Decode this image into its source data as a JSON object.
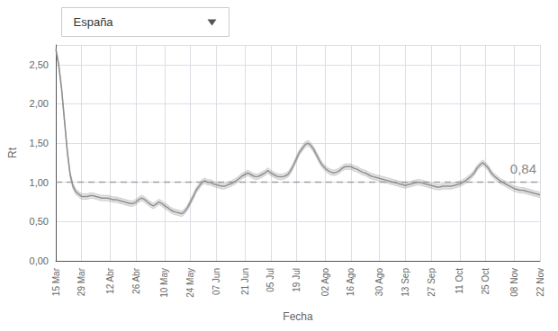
{
  "chart_data": {
    "type": "line",
    "xlabel": "Fecha",
    "ylabel": "Rt",
    "dropdown": "España",
    "annotation": {
      "text": "0,84",
      "y": 0.84
    },
    "reference_line": 1.0,
    "color": "#909090",
    "grid": true,
    "ylim": [
      0.0,
      2.75
    ],
    "yticks": [
      {
        "value": 0.0,
        "label": "0,00"
      },
      {
        "value": 0.5,
        "label": "0,50"
      },
      {
        "value": 1.0,
        "label": "1,00"
      },
      {
        "value": 1.5,
        "label": "1,50"
      },
      {
        "value": 2.0,
        "label": "2,00"
      },
      {
        "value": 2.5,
        "label": "2,50"
      }
    ],
    "categories": [
      "15 Mar",
      null,
      null,
      null,
      null,
      null,
      null,
      null,
      null,
      "29 Mar",
      null,
      null,
      null,
      null,
      null,
      null,
      null,
      null,
      null,
      "12 Abr",
      null,
      null,
      null,
      null,
      null,
      null,
      null,
      null,
      "26 Abr",
      null,
      null,
      null,
      null,
      null,
      null,
      null,
      null,
      null,
      "10 May",
      null,
      null,
      null,
      null,
      null,
      null,
      null,
      null,
      "24 May",
      null,
      null,
      null,
      null,
      null,
      null,
      null,
      null,
      "07 Jun",
      null,
      null,
      null,
      null,
      null,
      null,
      null,
      null,
      null,
      "21 Jun",
      null,
      null,
      null,
      null,
      null,
      null,
      null,
      null,
      "05 Jul",
      null,
      null,
      null,
      null,
      null,
      null,
      null,
      null,
      "19 Jul",
      null,
      null,
      null,
      null,
      null,
      null,
      null,
      null,
      null,
      "02 Ago",
      null,
      null,
      null,
      null,
      null,
      null,
      null,
      null,
      "16 Ago",
      null,
      null,
      null,
      null,
      null,
      null,
      null,
      null,
      null,
      "30 Ago",
      null,
      null,
      null,
      null,
      null,
      null,
      null,
      null,
      "13 Sep",
      null,
      null,
      null,
      null,
      null,
      null,
      null,
      null,
      "27 Sep",
      null,
      null,
      null,
      null,
      null,
      null,
      null,
      null,
      null,
      "11 Oct",
      null,
      null,
      null,
      null,
      null,
      null,
      null,
      null,
      "25 Oct",
      null,
      null,
      null,
      null,
      null,
      null,
      null,
      null,
      null,
      "08 Nov",
      null,
      null,
      null,
      null,
      null,
      null,
      null,
      null,
      "22 Nov"
    ],
    "values": [
      2.7,
      2.5,
      2.2,
      1.8,
      1.4,
      1.1,
      0.95,
      0.88,
      0.85,
      0.82,
      0.82,
      0.82,
      0.83,
      0.83,
      0.82,
      0.81,
      0.8,
      0.8,
      0.8,
      0.79,
      0.78,
      0.78,
      0.77,
      0.76,
      0.75,
      0.74,
      0.73,
      0.73,
      0.75,
      0.78,
      0.8,
      0.78,
      0.75,
      0.72,
      0.7,
      0.72,
      0.75,
      0.73,
      0.7,
      0.68,
      0.65,
      0.63,
      0.62,
      0.61,
      0.6,
      0.63,
      0.68,
      0.75,
      0.82,
      0.9,
      0.95,
      1.0,
      1.02,
      1.0,
      1.0,
      0.98,
      0.97,
      0.96,
      0.95,
      0.95,
      0.97,
      0.98,
      1.0,
      1.02,
      1.05,
      1.08,
      1.1,
      1.12,
      1.1,
      1.08,
      1.07,
      1.08,
      1.1,
      1.12,
      1.15,
      1.12,
      1.1,
      1.08,
      1.07,
      1.07,
      1.08,
      1.1,
      1.15,
      1.22,
      1.3,
      1.38,
      1.43,
      1.48,
      1.5,
      1.47,
      1.42,
      1.35,
      1.28,
      1.22,
      1.18,
      1.15,
      1.13,
      1.12,
      1.13,
      1.15,
      1.18,
      1.2,
      1.2,
      1.2,
      1.18,
      1.17,
      1.15,
      1.13,
      1.12,
      1.1,
      1.08,
      1.07,
      1.06,
      1.05,
      1.04,
      1.03,
      1.02,
      1.01,
      1.0,
      0.99,
      0.98,
      0.97,
      0.96,
      0.97,
      0.98,
      0.99,
      1.0,
      1.0,
      0.99,
      0.98,
      0.97,
      0.96,
      0.95,
      0.94,
      0.94,
      0.95,
      0.95,
      0.95,
      0.95,
      0.96,
      0.97,
      0.98,
      1.0,
      1.02,
      1.05,
      1.08,
      1.12,
      1.18,
      1.22,
      1.25,
      1.22,
      1.18,
      1.12,
      1.08,
      1.05,
      1.02,
      1.0,
      0.98,
      0.96,
      0.94,
      0.92,
      0.91,
      0.9,
      0.9,
      0.89,
      0.88,
      0.87,
      0.86,
      0.85,
      0.84
    ],
    "lower": [
      2.665,
      2.465,
      2.165,
      1.765,
      1.365,
      1.065,
      0.915,
      0.845,
      0.815,
      0.785,
      0.785,
      0.785,
      0.795,
      0.795,
      0.785,
      0.775,
      0.765,
      0.765,
      0.765,
      0.755,
      0.745,
      0.745,
      0.735,
      0.725,
      0.715,
      0.705,
      0.695,
      0.695,
      0.715,
      0.745,
      0.765,
      0.745,
      0.715,
      0.685,
      0.665,
      0.685,
      0.715,
      0.695,
      0.665,
      0.645,
      0.615,
      0.595,
      0.585,
      0.575,
      0.565,
      0.595,
      0.645,
      0.715,
      0.785,
      0.865,
      0.915,
      0.965,
      0.985,
      0.965,
      0.965,
      0.945,
      0.935,
      0.925,
      0.915,
      0.915,
      0.935,
      0.945,
      0.965,
      0.985,
      1.015,
      1.045,
      1.065,
      1.085,
      1.065,
      1.045,
      1.035,
      1.045,
      1.065,
      1.085,
      1.115,
      1.085,
      1.065,
      1.045,
      1.035,
      1.035,
      1.045,
      1.065,
      1.115,
      1.185,
      1.265,
      1.345,
      1.395,
      1.445,
      1.465,
      1.435,
      1.385,
      1.315,
      1.245,
      1.185,
      1.145,
      1.115,
      1.095,
      1.085,
      1.095,
      1.115,
      1.145,
      1.165,
      1.165,
      1.165,
      1.145,
      1.135,
      1.115,
      1.095,
      1.085,
      1.065,
      1.045,
      1.035,
      1.025,
      1.015,
      1.005,
      0.995,
      0.985,
      0.975,
      0.965,
      0.955,
      0.945,
      0.935,
      0.925,
      0.935,
      0.945,
      0.955,
      0.965,
      0.965,
      0.955,
      0.945,
      0.935,
      0.925,
      0.915,
      0.905,
      0.905,
      0.915,
      0.915,
      0.915,
      0.915,
      0.925,
      0.935,
      0.945,
      0.965,
      0.985,
      1.015,
      1.045,
      1.085,
      1.145,
      1.185,
      1.215,
      1.185,
      1.145,
      1.085,
      1.045,
      1.015,
      0.985,
      0.965,
      0.945,
      0.925,
      0.905,
      0.885,
      0.875,
      0.865,
      0.865,
      0.855,
      0.845,
      0.835,
      0.825,
      0.815,
      0.805
    ],
    "upper": [
      2.735,
      2.535,
      2.235,
      1.835,
      1.435,
      1.135,
      0.985,
      0.915,
      0.885,
      0.855,
      0.855,
      0.855,
      0.865,
      0.865,
      0.855,
      0.845,
      0.835,
      0.835,
      0.835,
      0.825,
      0.815,
      0.815,
      0.805,
      0.795,
      0.785,
      0.775,
      0.765,
      0.765,
      0.785,
      0.815,
      0.835,
      0.815,
      0.785,
      0.755,
      0.735,
      0.755,
      0.785,
      0.765,
      0.735,
      0.715,
      0.685,
      0.665,
      0.655,
      0.645,
      0.635,
      0.665,
      0.715,
      0.785,
      0.855,
      0.935,
      0.985,
      1.035,
      1.055,
      1.035,
      1.035,
      1.015,
      1.005,
      0.995,
      0.985,
      0.985,
      1.005,
      1.015,
      1.035,
      1.055,
      1.085,
      1.115,
      1.135,
      1.155,
      1.135,
      1.115,
      1.105,
      1.115,
      1.135,
      1.155,
      1.185,
      1.155,
      1.135,
      1.115,
      1.105,
      1.105,
      1.115,
      1.135,
      1.185,
      1.255,
      1.335,
      1.415,
      1.465,
      1.515,
      1.535,
      1.505,
      1.455,
      1.385,
      1.315,
      1.255,
      1.215,
      1.185,
      1.165,
      1.155,
      1.165,
      1.185,
      1.215,
      1.235,
      1.235,
      1.235,
      1.215,
      1.205,
      1.185,
      1.165,
      1.155,
      1.135,
      1.115,
      1.105,
      1.095,
      1.085,
      1.075,
      1.065,
      1.055,
      1.045,
      1.035,
      1.025,
      1.015,
      1.005,
      0.995,
      1.005,
      1.015,
      1.025,
      1.035,
      1.035,
      1.025,
      1.015,
      1.005,
      0.995,
      0.985,
      0.975,
      0.975,
      0.985,
      0.985,
      0.985,
      0.985,
      0.995,
      1.005,
      1.015,
      1.035,
      1.055,
      1.085,
      1.115,
      1.155,
      1.215,
      1.255,
      1.285,
      1.255,
      1.215,
      1.155,
      1.115,
      1.085,
      1.055,
      1.035,
      1.015,
      0.995,
      0.975,
      0.955,
      0.945,
      0.935,
      0.935,
      0.925,
      0.915,
      0.905,
      0.895,
      0.885,
      0.875
    ]
  }
}
